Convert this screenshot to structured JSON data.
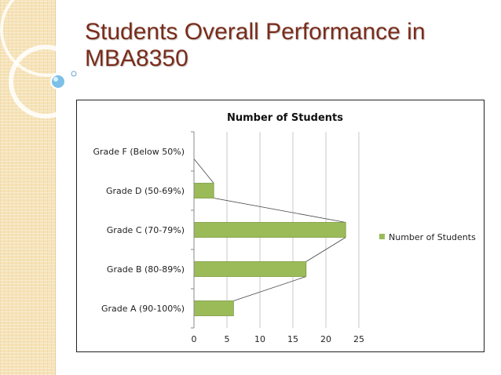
{
  "slide": {
    "title": "Students Overall Performance in MBA8350"
  },
  "colors": {
    "title_text": "#7a2c1b",
    "bar_fill": "#9bbb59",
    "bar_stroke": "#7d9a3f",
    "gridline": "#c8c8c8",
    "series_line": "#444444",
    "side_band": "#f6e3b8"
  },
  "chart_data": {
    "type": "bar",
    "orientation": "horizontal",
    "title": "Number of Students",
    "categories": [
      "Grade A (90-100%)",
      "Grade B (80-89%)",
      "Grade C (70-79%)",
      "Grade D (50-69%)",
      "Grade F (Below 50%)"
    ],
    "series": [
      {
        "name": "Number of Students",
        "values": [
          6,
          17,
          23,
          3,
          0
        ]
      }
    ],
    "xlim": [
      0,
      25
    ],
    "xticks": [
      0,
      5,
      10,
      15,
      20,
      25
    ],
    "grid": true,
    "legend": "right",
    "series_lines": true
  }
}
